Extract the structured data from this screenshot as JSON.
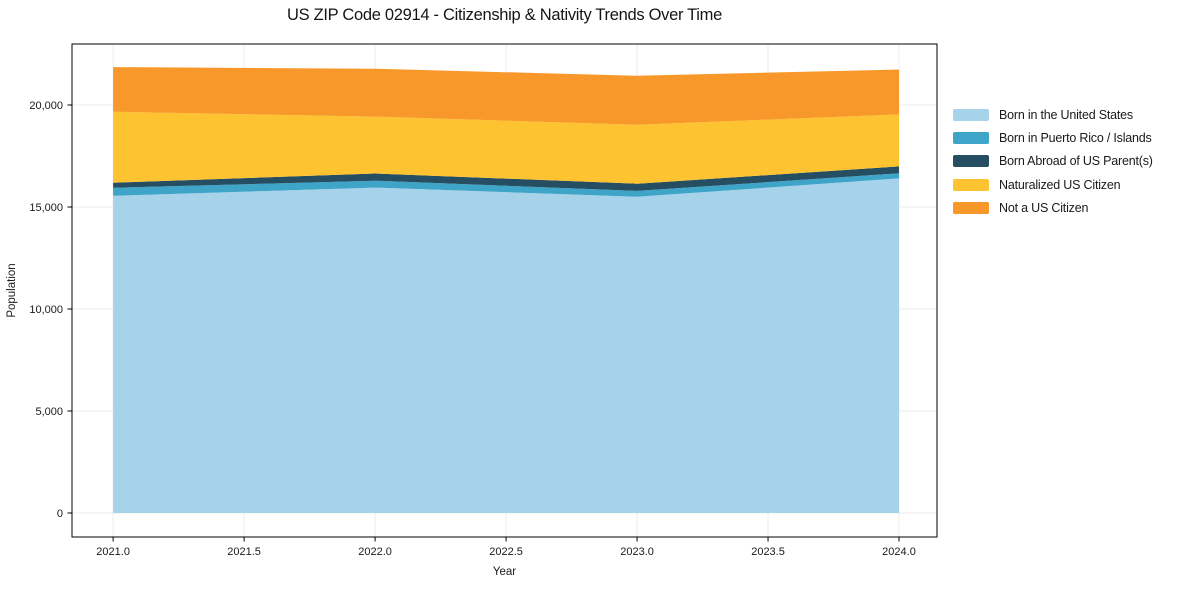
{
  "chart_data": {
    "type": "area",
    "stacked": true,
    "title": "US ZIP Code 02914 - Citizenship & Nativity Trends Over Time",
    "xlabel": "Year",
    "ylabel": "Population",
    "x": [
      2021,
      2022,
      2023,
      2024
    ],
    "series": [
      {
        "name": "Born in the United States",
        "color": "#a6d3ea",
        "values": [
          15550,
          15950,
          15500,
          16400
        ]
      },
      {
        "name": "Born in Puerto Rico / Islands",
        "color": "#3fa5c8",
        "values": [
          390,
          340,
          290,
          250
        ]
      },
      {
        "name": "Born Abroad of US Parent(s)",
        "color": "#254e63",
        "values": [
          250,
          350,
          350,
          340
        ]
      },
      {
        "name": "Naturalized US Citizen",
        "color": "#fdc330",
        "values": [
          3480,
          2790,
          2890,
          2550
        ]
      },
      {
        "name": "Not a US Citizen",
        "color": "#f8982a",
        "values": [
          2190,
          2350,
          2400,
          2200
        ]
      }
    ],
    "xticks": {
      "values": [
        2021,
        2021.5,
        2022,
        2022.5,
        2023,
        2023.5,
        2024
      ],
      "labels": [
        "2021.0",
        "2021.5",
        "2022.0",
        "2022.5",
        "2023.0",
        "2023.5",
        "2024.0"
      ]
    },
    "yticks": {
      "values": [
        0,
        5000,
        10000,
        15000,
        20000
      ],
      "labels": [
        "0",
        "5,000",
        "10,000",
        "15,000",
        "20,000"
      ]
    },
    "xlim": [
      2020.843,
      2024.145
    ],
    "ylim": [
      -1176,
      22990
    ],
    "grid": true,
    "grid_color": "#ececec",
    "spine_color": "#000000",
    "tick_label_color": "#1a1a1a",
    "legend_position": "right"
  }
}
